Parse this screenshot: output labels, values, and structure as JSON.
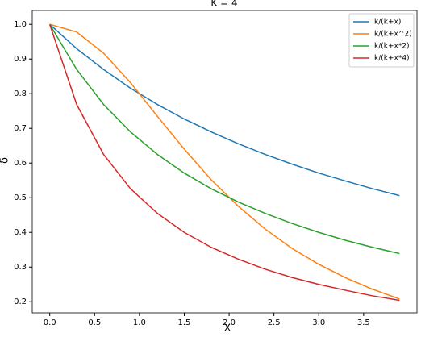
{
  "chart_data": {
    "type": "line",
    "title": "K = 4",
    "x_label": "X",
    "y_label": "δ",
    "x": [
      0,
      0.3,
      0.6,
      0.9,
      1.2,
      1.5,
      1.8,
      2.1,
      2.4,
      2.7,
      3.0,
      3.3,
      3.6,
      3.9
    ],
    "series": [
      {
        "name": "k/(k+x)",
        "color": "#1f77b4",
        "values": [
          1,
          0.93,
          0.87,
          0.816,
          0.769,
          0.727,
          0.69,
          0.656,
          0.625,
          0.597,
          0.571,
          0.548,
          0.526,
          0.506
        ]
      },
      {
        "name": "k/(k+x^2)",
        "color": "#ff7f0e",
        "values": [
          1,
          0.978,
          0.917,
          0.832,
          0.735,
          0.64,
          0.552,
          0.476,
          0.41,
          0.354,
          0.308,
          0.269,
          0.236,
          0.208
        ]
      },
      {
        "name": "k/(k+x*2)",
        "color": "#2ca02c",
        "values": [
          1,
          0.87,
          0.769,
          0.69,
          0.625,
          0.571,
          0.526,
          0.488,
          0.455,
          0.426,
          0.4,
          0.377,
          0.357,
          0.339
        ]
      },
      {
        "name": "k/(k+x*4)",
        "color": "#d62728",
        "values": [
          1,
          0.769,
          0.625,
          0.526,
          0.455,
          0.4,
          0.357,
          0.323,
          0.294,
          0.27,
          0.25,
          0.233,
          0.217,
          0.204
        ]
      }
    ],
    "xlim": [
      -0.195,
      4.095
    ],
    "xticks": [
      {
        "value": 0,
        "label": "0.0"
      },
      0.5,
      {
        "value": 1,
        "label": "1.0"
      },
      1.5,
      {
        "value": 2,
        "label": "2.0"
      },
      2.5,
      {
        "value": 3,
        "label": "3.0"
      },
      3.5
    ],
    "ylim": [
      0.168,
      1.04
    ],
    "yticks": [
      0.2,
      0.3,
      0.4,
      0.5,
      0.6,
      0.7,
      0.8,
      0.9,
      {
        "value": 1,
        "label": "1.0"
      }
    ],
    "legend": "upper right"
  }
}
